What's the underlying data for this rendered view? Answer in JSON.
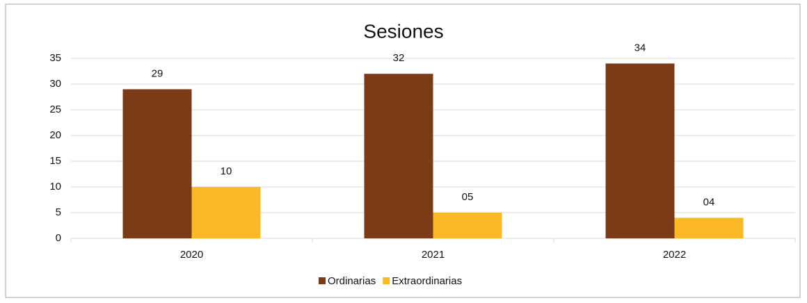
{
  "chart_data": {
    "type": "bar",
    "title": "Sesiones",
    "categories": [
      "2020",
      "2021",
      "2022"
    ],
    "series": [
      {
        "name": "Ordinarias",
        "color": "#7b3b17",
        "values": [
          29,
          32,
          34
        ]
      },
      {
        "name": "Extraordinarias",
        "color": "#fbb928",
        "values": [
          10,
          5,
          4
        ],
        "value_labels": [
          "10",
          "05",
          "04"
        ]
      }
    ],
    "ylim": [
      0,
      35
    ],
    "yticks": [
      0,
      5,
      10,
      15,
      20,
      25,
      30,
      35
    ],
    "grid": true,
    "legend": "bottom"
  }
}
